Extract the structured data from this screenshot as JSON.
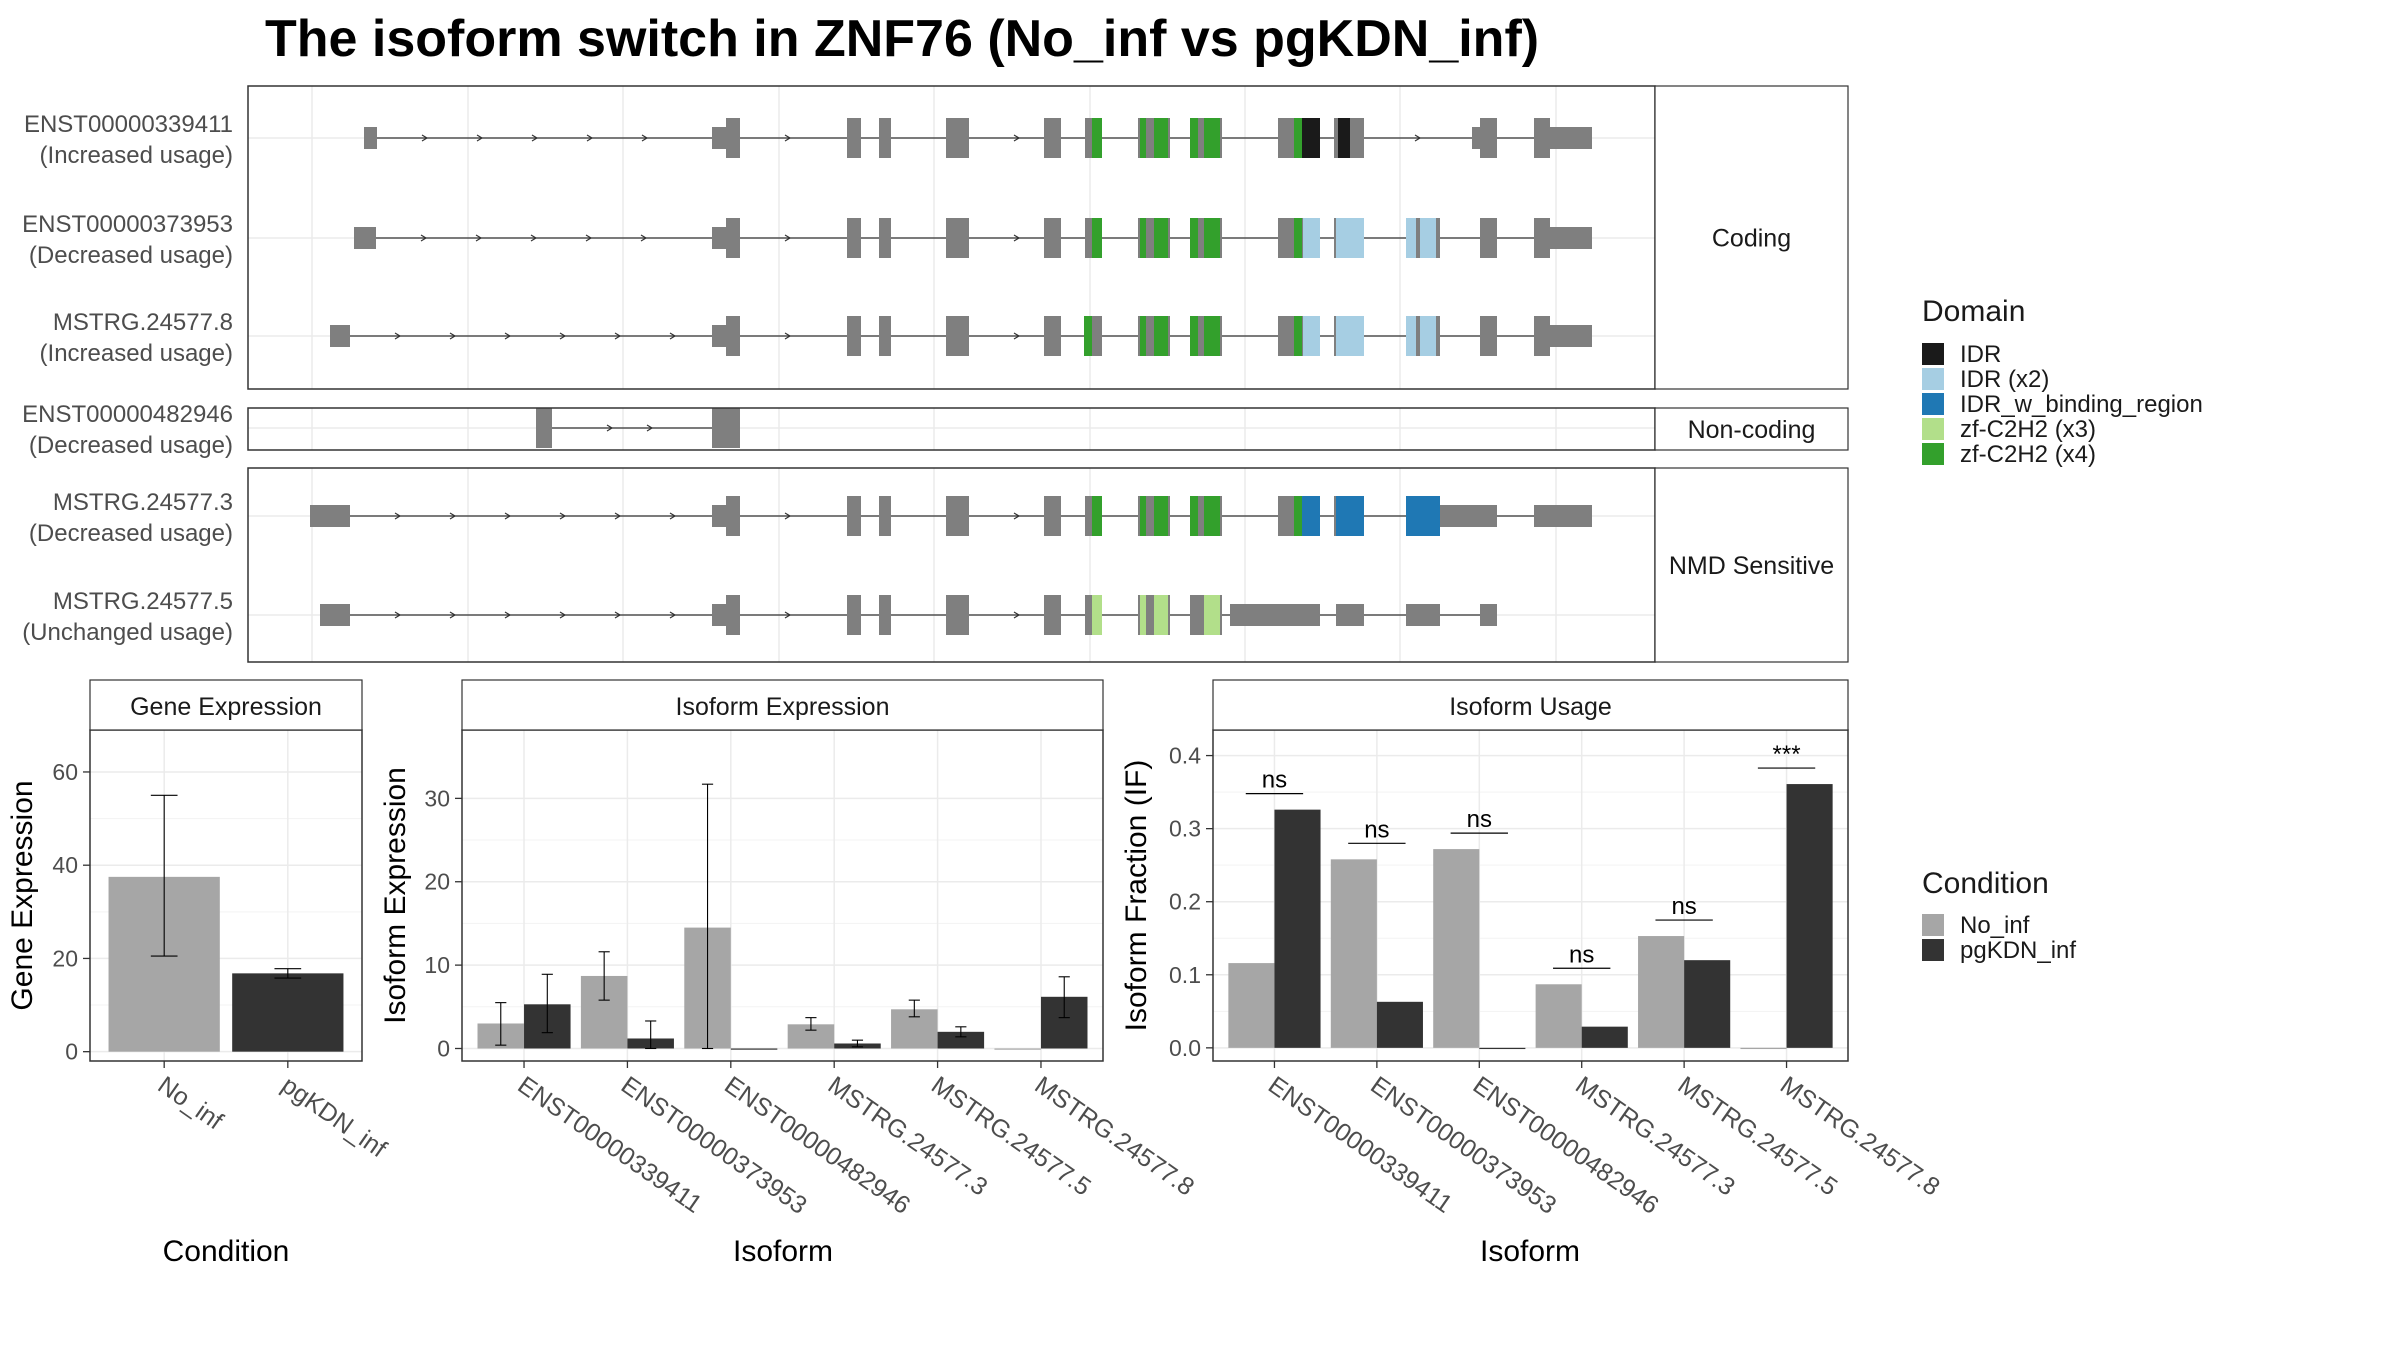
{
  "title": "The isoform switch in ZNF76 (No_inf vs pgKDN_inf)",
  "colors": {
    "exon": "#7f7f7f",
    "no_inf": "#a6a6a6",
    "pgkdn_inf": "#333333",
    "IDR": "#1a1a1a",
    "IDR (x2)": "#a6cee3",
    "IDR_w_binding_region": "#1f78b4",
    "zf-C2H2 (x3)": "#b2df8a",
    "zf-C2H2 (x4)": "#33a02c"
  },
  "structure": {
    "facets": [
      "Coding",
      "Non-coding",
      "NMD Sensitive"
    ],
    "transcripts": [
      {
        "id": "ENST00000339411",
        "usage": "(Increased usage)",
        "facet": 0
      },
      {
        "id": "ENST00000373953",
        "usage": "(Decreased usage)",
        "facet": 0
      },
      {
        "id": "MSTRG.24577.8",
        "usage": "(Increased usage)",
        "facet": 0
      },
      {
        "id": "ENST00000482946",
        "usage": "(Decreased usage)",
        "facet": 1
      },
      {
        "id": "MSTRG.24577.3",
        "usage": "(Decreased usage)",
        "facet": 2
      },
      {
        "id": "MSTRG.24577.5",
        "usage": "(Unchanged usage)",
        "facet": 2
      }
    ]
  },
  "legend_domain": {
    "title": "Domain",
    "items": [
      "IDR",
      "IDR (x2)",
      "IDR_w_binding_region",
      "zf-C2H2 (x3)",
      "zf-C2H2 (x4)"
    ]
  },
  "legend_condition": {
    "title": "Condition",
    "items": [
      "No_inf",
      "pgKDN_inf"
    ]
  },
  "chart_data": [
    {
      "type": "bar",
      "title": "Gene Expression",
      "xlabel": "Condition",
      "ylabel": "Gene Expression",
      "categories": [
        "No_inf",
        "pgKDN_inf"
      ],
      "values": [
        37.5,
        16.8
      ],
      "error_low": [
        20.5,
        15.8
      ],
      "error_high": [
        55.0,
        17.8
      ],
      "ylim": [
        -2,
        69
      ],
      "yticks": [
        "0",
        "20",
        "40",
        "60"
      ]
    },
    {
      "type": "bar",
      "title": "Isoform Expression",
      "xlabel": "Isoform",
      "ylabel": "Isoform Expression",
      "categories": [
        "ENST00000339411",
        "ENST00000373953",
        "ENST00000482946",
        "MSTRG.24577.3",
        "MSTRG.24577.5",
        "MSTRG.24577.8"
      ],
      "series": [
        {
          "name": "No_inf",
          "values": [
            3.0,
            8.7,
            14.5,
            2.9,
            4.7,
            0.0
          ],
          "error_low": [
            0.4,
            5.8,
            0.0,
            2.2,
            3.8,
            0.0
          ],
          "error_high": [
            5.5,
            11.6,
            31.7,
            3.7,
            5.8,
            0.0
          ]
        },
        {
          "name": "pgKDN_inf",
          "values": [
            5.3,
            1.2,
            0.0,
            0.6,
            2.0,
            6.2
          ],
          "error_low": [
            1.9,
            0.0,
            0.0,
            0.2,
            1.4,
            3.7
          ],
          "error_high": [
            8.9,
            3.3,
            0.0,
            1.0,
            2.6,
            8.6
          ]
        }
      ],
      "ylim": [
        -1.5,
        38.2
      ],
      "yticks": [
        "0",
        "10",
        "20",
        "30"
      ]
    },
    {
      "type": "bar",
      "title": "Isoform Usage",
      "xlabel": "Isoform",
      "ylabel": "Isoform Fraction (IF)",
      "categories": [
        "ENST00000339411",
        "ENST00000373953",
        "ENST00000482946",
        "MSTRG.24577.3",
        "MSTRG.24577.5",
        "MSTRG.24577.8"
      ],
      "series": [
        {
          "name": "No_inf",
          "values": [
            0.116,
            0.258,
            0.272,
            0.087,
            0.153,
            0.0
          ]
        },
        {
          "name": "pgKDN_inf",
          "values": [
            0.326,
            0.063,
            0.0,
            0.029,
            0.12,
            0.361
          ]
        }
      ],
      "significance": [
        "ns",
        "ns",
        "ns",
        "ns",
        "ns",
        "***"
      ],
      "ylim": [
        -0.018,
        0.435
      ],
      "yticks": [
        "0.0",
        "0.1",
        "0.2",
        "0.3",
        "0.4"
      ]
    }
  ]
}
